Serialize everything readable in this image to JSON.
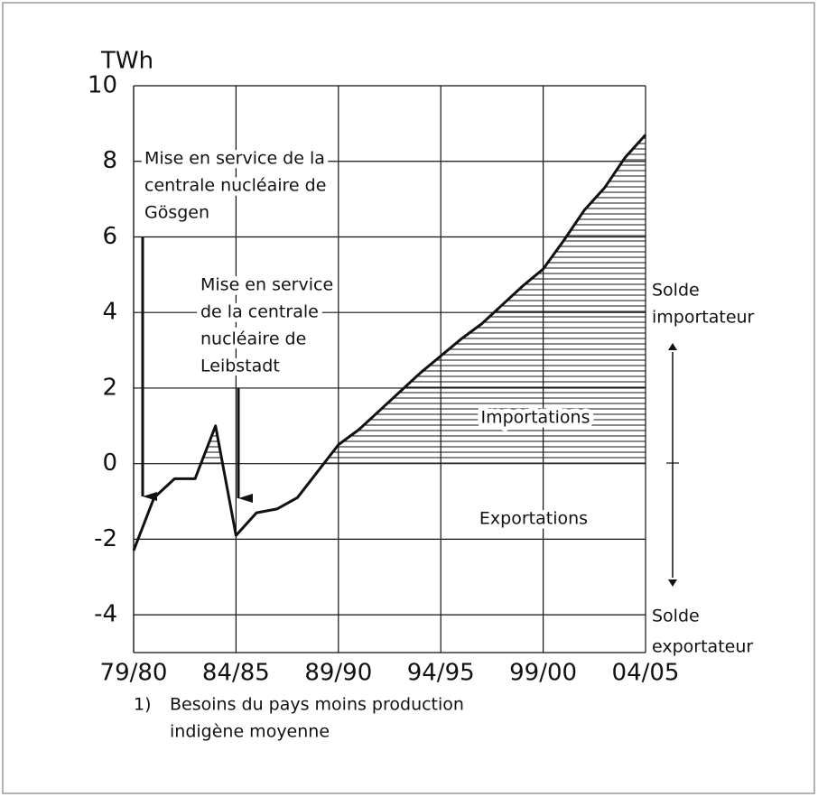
{
  "chart_data": {
    "type": "line",
    "y_label": "TWh",
    "categories": [
      "79/80",
      null,
      null,
      null,
      null,
      "84/85",
      null,
      null,
      null,
      null,
      "89/90",
      null,
      null,
      null,
      null,
      "94/95",
      null,
      null,
      null,
      null,
      "99/00",
      null,
      null,
      null,
      null,
      "04/05"
    ],
    "values": [
      -2.3,
      -0.9,
      -0.4,
      -0.4,
      1.0,
      -1.9,
      -1.3,
      -1.2,
      -0.9,
      -0.2,
      0.5,
      0.9,
      1.4,
      1.9,
      2.4,
      2.85,
      3.3,
      3.7,
      4.2,
      4.7,
      5.15,
      5.9,
      6.7,
      7.3,
      8.1,
      8.7
    ],
    "color": "#111111",
    "ylim": [
      -5,
      10
    ],
    "yticks": [
      -4,
      -2,
      0,
      2,
      4,
      6,
      8,
      10
    ],
    "grid": true,
    "annotations": {
      "gosgen": [
        "Mise en service de la",
        "centrale  nucléaire de",
        "Gösgen"
      ],
      "leibstadt": [
        "Mise en service",
        "de la centrale",
        "nucléaire de",
        "Leibstadt"
      ],
      "imports": "Importations",
      "exports": "Exportations",
      "importer": [
        "Solde",
        "importateur"
      ],
      "exporter": [
        "Solde",
        "exportateur"
      ]
    },
    "footnote": {
      "marker": "1)",
      "lines": [
        "Besoins du pays moins production",
        "indigène  moyenne"
      ]
    }
  }
}
